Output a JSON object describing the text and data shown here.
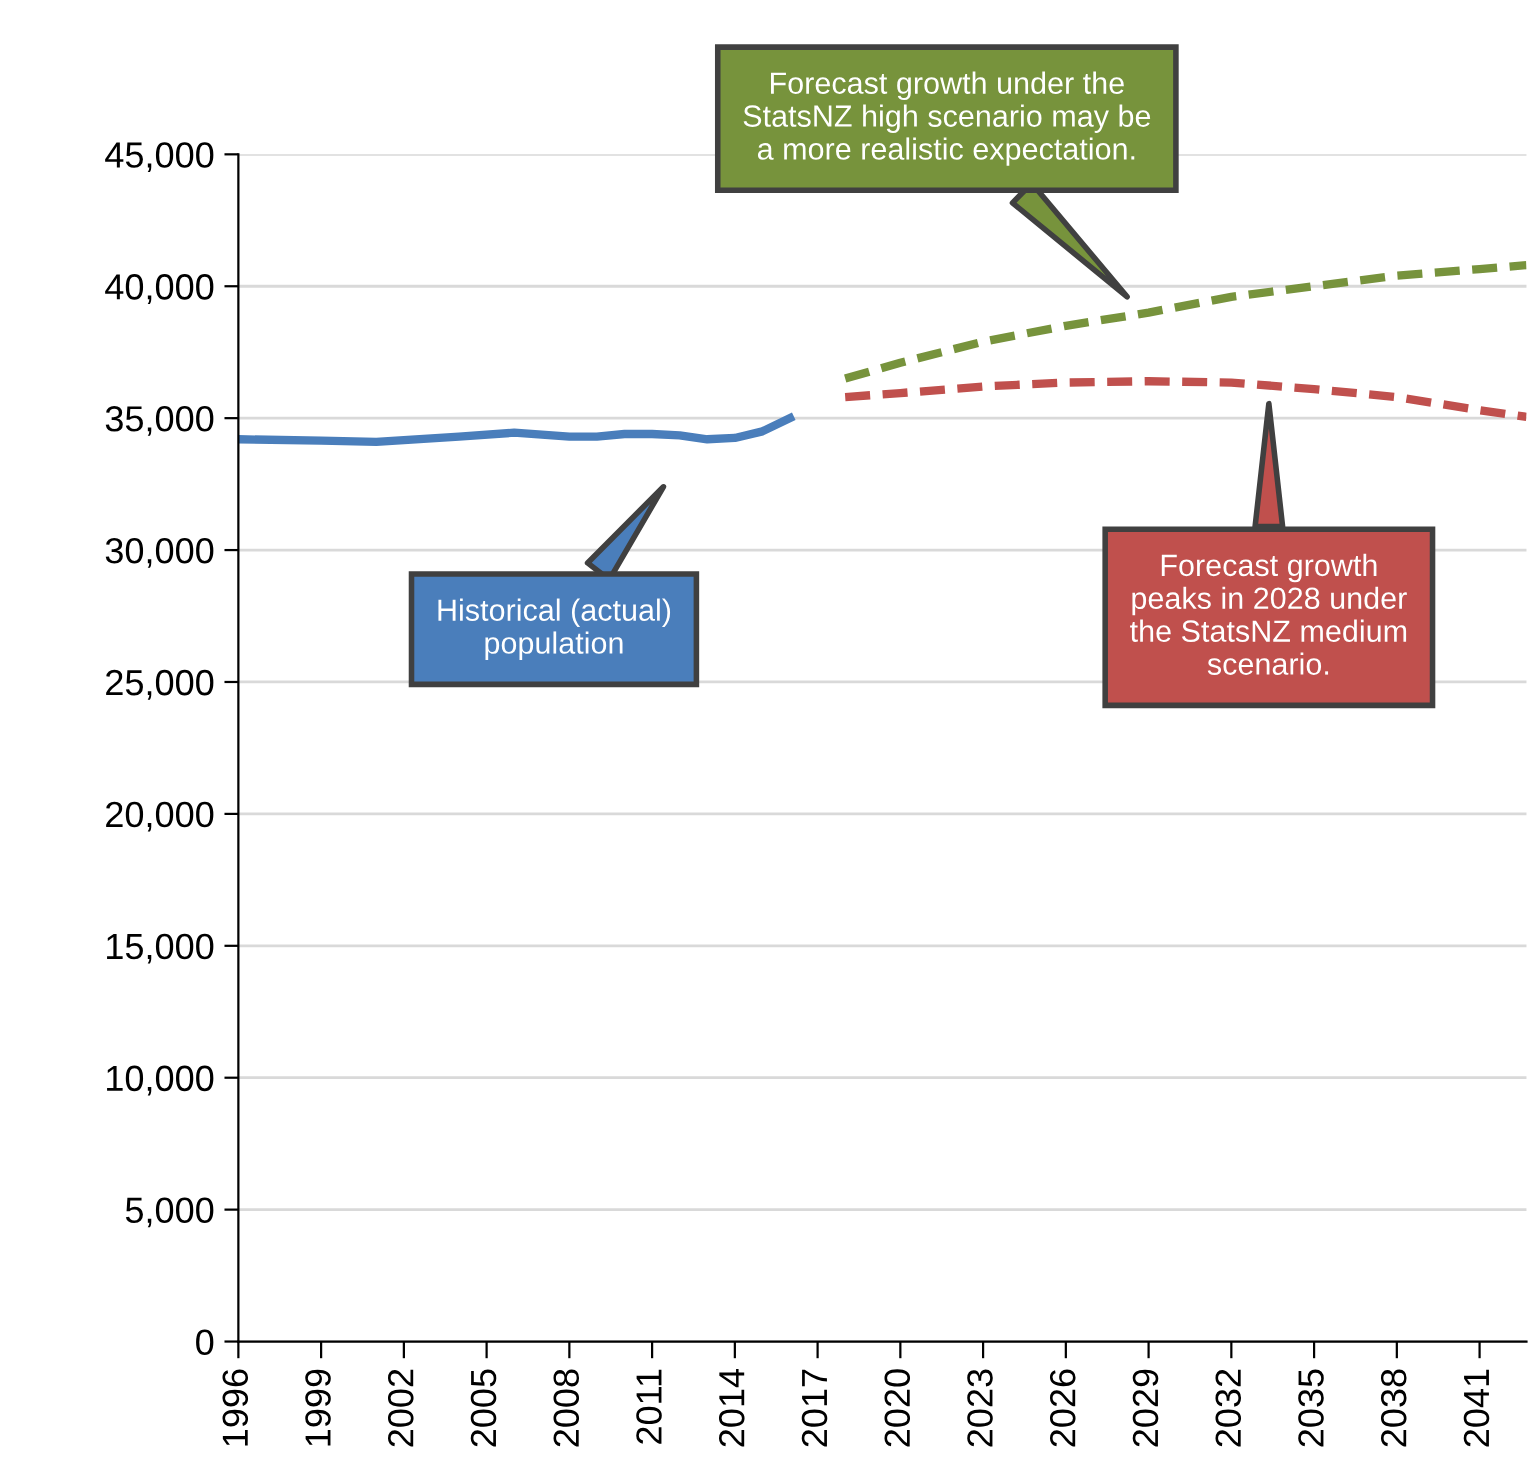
{
  "chart_data": {
    "type": "line",
    "xlim": [
      1996,
      2042.7
    ],
    "xticks": [
      1996,
      1999,
      2002,
      2005,
      2008,
      2011,
      2014,
      2017,
      2020,
      2023,
      2026,
      2029,
      2032,
      2035,
      2038,
      2041
    ],
    "ylim": [
      0,
      45000
    ],
    "yticks": [
      {
        "value": 0,
        "label": "0"
      },
      {
        "value": 5000,
        "label": "5,000"
      },
      {
        "value": 10000,
        "label": "10,000"
      },
      {
        "value": 15000,
        "label": "15,000"
      },
      {
        "value": 20000,
        "label": "20,000"
      },
      {
        "value": 25000,
        "label": "25,000"
      },
      {
        "value": 30000,
        "label": "30,000"
      },
      {
        "value": 35000,
        "label": "35,000"
      },
      {
        "value": 40000,
        "label": "40,000"
      },
      {
        "value": 45000,
        "label": "45,000"
      }
    ],
    "grid": "y",
    "legend": false,
    "marker": "none",
    "series": [
      {
        "color": "#4a7ebb",
        "line_style": "solid",
        "x": [
          1996,
          1999,
          2001,
          2004,
          2006,
          2008,
          2009,
          2010,
          2011,
          2012,
          2013,
          2014,
          2015,
          2016
        ],
        "values": [
          34200,
          34150,
          34100,
          34300,
          34450,
          34300,
          34300,
          34400,
          34400,
          34350,
          34200,
          34250,
          34500,
          35000
        ]
      },
      {
        "color": "#77933c",
        "line_style": "dashed",
        "x": [
          2018,
          2020,
          2023,
          2026,
          2029,
          2032,
          2035,
          2038,
          2041,
          2042.7
        ],
        "values": [
          36500,
          37100,
          37900,
          38500,
          39000,
          39600,
          40000,
          40400,
          40650,
          40800
        ]
      },
      {
        "color": "#c0504d",
        "line_style": "dashed",
        "x": [
          2018,
          2020,
          2023,
          2026,
          2029,
          2032,
          2035,
          2038,
          2041,
          2042.7
        ],
        "values": [
          35800,
          35950,
          36200,
          36350,
          36400,
          36350,
          36100,
          35800,
          35300,
          35050
        ]
      }
    ],
    "annotations": [
      "Historical (actual)\npopulation",
      "Forecast growth under the\nStatsNZ high scenario may be\na more realistic expectation.",
      "Forecast growth\npeaks in 2028 under\nthe StatsNZ medium\nscenario."
    ]
  }
}
